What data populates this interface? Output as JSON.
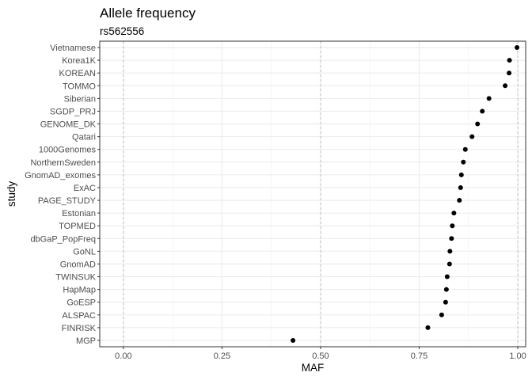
{
  "chart_data": {
    "type": "scatter",
    "title": "Allele frequency",
    "subtitle": "rs562556",
    "xlabel": "MAF",
    "ylabel": "study",
    "xlim": [
      -0.06,
      1.02
    ],
    "xticks": [
      "0.00",
      "0.25",
      "0.50",
      "0.75",
      "1.00"
    ],
    "xtick_values": [
      0,
      0.25,
      0.5,
      0.75,
      1.0
    ],
    "dashed_vlines": [
      0,
      0.5,
      1.0
    ],
    "grid": true,
    "point_color": "#000000",
    "categories": [
      "Vietnamese",
      "Korea1K",
      "KOREAN",
      "TOMMO",
      "Siberian",
      "SGDP_PRJ",
      "GENOME_DK",
      "Qatari",
      "1000Genomes",
      "NorthernSweden",
      "GnomAD_exomes",
      "ExAC",
      "PAGE_STUDY",
      "Estonian",
      "TOPMED",
      "dbGaP_PopFreq",
      "GoNL",
      "GnomAD",
      "TWINSUK",
      "HapMap",
      "GoESP",
      "ALSPAC",
      "FINRISK",
      "MGP"
    ],
    "values": [
      0.998,
      0.979,
      0.978,
      0.968,
      0.927,
      0.91,
      0.898,
      0.884,
      0.867,
      0.862,
      0.857,
      0.855,
      0.852,
      0.838,
      0.834,
      0.832,
      0.828,
      0.827,
      0.821,
      0.819,
      0.817,
      0.807,
      0.772,
      0.43
    ]
  }
}
